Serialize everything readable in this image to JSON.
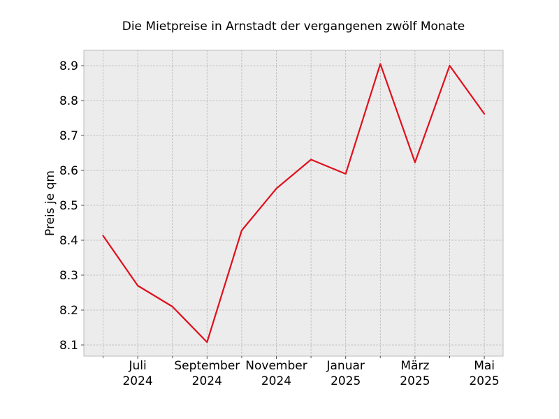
{
  "chart_data": {
    "type": "line",
    "title": "Die Mietpreise in Arnstadt der vergangenen zwölf Monate",
    "xlabel": "",
    "ylabel": "Preis je qm",
    "x": [
      "2024-06",
      "2024-07",
      "2024-08",
      "2024-09",
      "2024-10",
      "2024-11",
      "2024-12",
      "2025-01",
      "2025-02",
      "2025-03",
      "2025-04",
      "2025-05"
    ],
    "series": [
      {
        "color": "#e0101d",
        "values": [
          8.413,
          8.27,
          8.21,
          8.108,
          8.428,
          8.548,
          8.631,
          8.59,
          8.905,
          8.623,
          8.9,
          8.762
        ]
      }
    ],
    "x_tick_labels": [
      {
        "x": "2024-07",
        "line1": "Juli",
        "line2": "2024"
      },
      {
        "x": "2024-09",
        "line1": "September",
        "line2": "2024"
      },
      {
        "x": "2024-11",
        "line1": "November",
        "line2": "2024"
      },
      {
        "x": "2025-01",
        "line1": "Januar",
        "line2": "2025"
      },
      {
        "x": "2025-03",
        "line1": "März",
        "line2": "2025"
      },
      {
        "x": "2025-05",
        "line1": "Mai",
        "line2": "2025"
      }
    ],
    "y_ticks": [
      "8.1",
      "8.2",
      "8.3",
      "8.4",
      "8.5",
      "8.6",
      "8.7",
      "8.8",
      "8.9"
    ],
    "ylim": [
      8.068,
      8.944
    ],
    "grid": true,
    "legend": "none",
    "colors": {
      "background": "#ececec",
      "grid": "#b0b0b0",
      "frame": "#bcbcbc"
    }
  }
}
